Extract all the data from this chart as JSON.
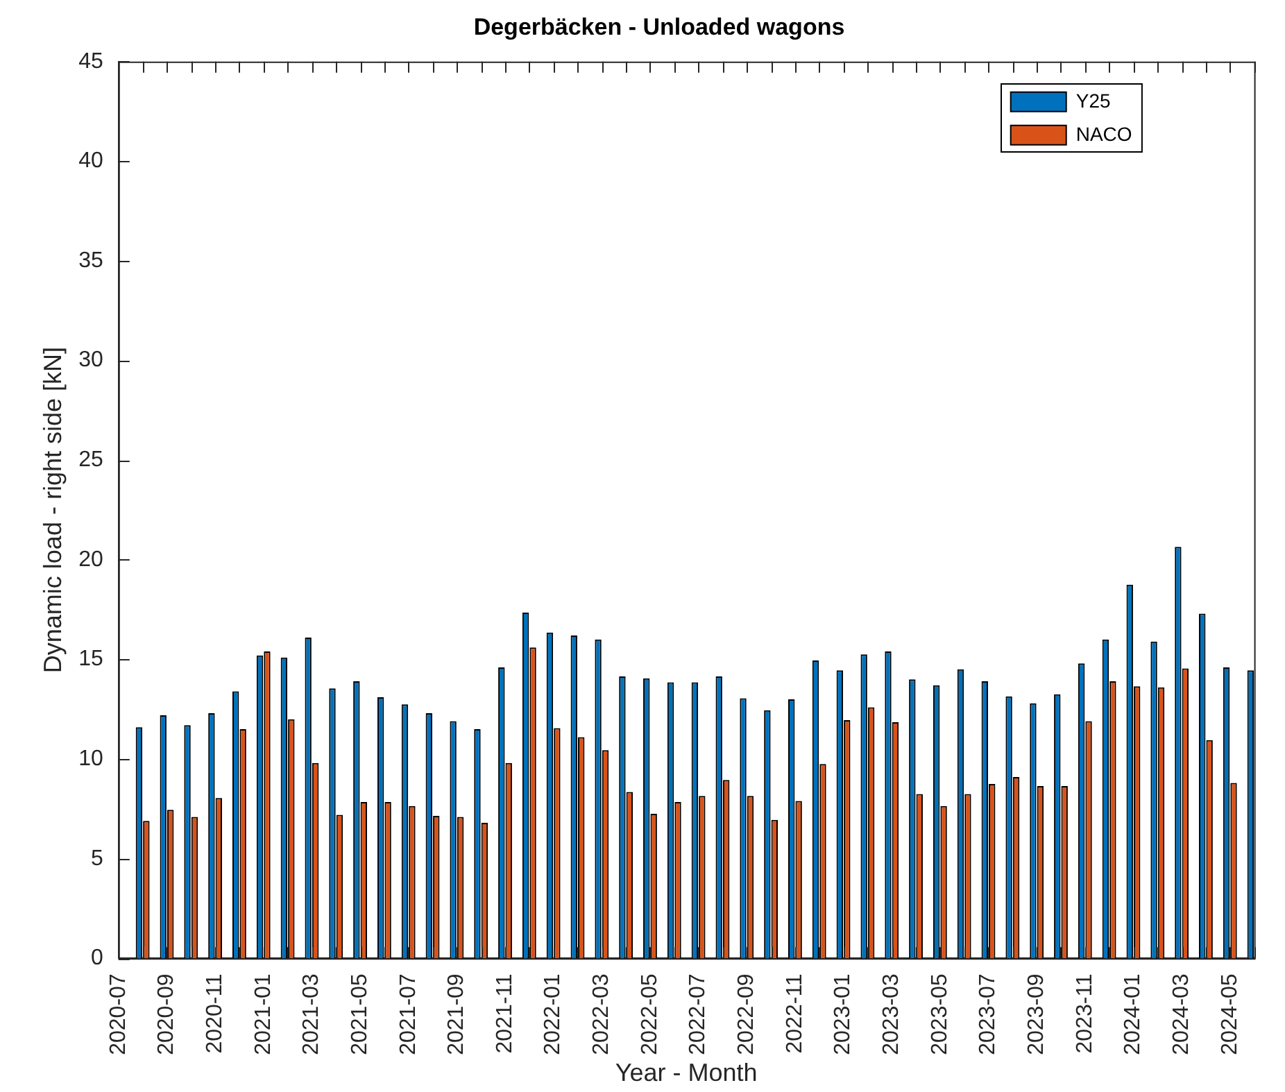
{
  "chart_data": {
    "type": "bar",
    "title": "Degerbäcken - Unloaded wagons",
    "xlabel": "Year - Month",
    "ylabel": "Dynamic load - right side [kN]",
    "categories": [
      "2020-07",
      null,
      "2020-09",
      null,
      "2020-11",
      null,
      "2021-01",
      null,
      "2021-03",
      null,
      "2021-05",
      null,
      "2021-07",
      null,
      "2021-09",
      null,
      "2021-11",
      null,
      "2022-01",
      null,
      "2022-03",
      null,
      "2022-05",
      null,
      "2022-07",
      null,
      "2022-09",
      null,
      "2022-11",
      null,
      "2023-01",
      null,
      "2023-03",
      null,
      "2023-05",
      null,
      "2023-07",
      null,
      "2023-09",
      null,
      "2023-11",
      null,
      "2024-01",
      null,
      "2024-03",
      null,
      "2024-05",
      null
    ],
    "series": [
      {
        "name": "Y25",
        "color": "#0072bd",
        "values": [
          null,
          11.6,
          12.2,
          11.7,
          12.3,
          13.4,
          15.2,
          15.1,
          16.1,
          13.55,
          13.9,
          13.1,
          12.75,
          12.3,
          11.9,
          11.5,
          14.6,
          17.35,
          16.35,
          16.2,
          16.0,
          14.15,
          14.05,
          13.85,
          13.85,
          14.15,
          13.05,
          12.45,
          13.0,
          14.95,
          14.45,
          15.25,
          15.4,
          14.0,
          13.7,
          14.5,
          13.9,
          13.15,
          12.8,
          13.25,
          14.8,
          16.0,
          18.75,
          15.9,
          20.65,
          17.3,
          14.6,
          14.45
        ]
      },
      {
        "name": "NACO",
        "color": "#d95319",
        "values": [
          null,
          6.9,
          7.45,
          7.1,
          8.05,
          11.5,
          15.4,
          12.0,
          9.8,
          7.2,
          7.85,
          7.85,
          7.65,
          7.15,
          7.1,
          6.8,
          9.8,
          15.6,
          11.55,
          11.1,
          10.45,
          8.35,
          7.25,
          7.85,
          8.15,
          8.95,
          8.15,
          6.95,
          7.9,
          9.75,
          11.95,
          12.6,
          11.85,
          8.25,
          7.65,
          8.25,
          8.75,
          9.1,
          8.65,
          8.65,
          11.9,
          13.9,
          13.65,
          13.6,
          14.55,
          10.95,
          8.8,
          null
        ]
      }
    ],
    "ylim": [
      0,
      45
    ],
    "yticks": [
      0,
      5,
      10,
      15,
      20,
      25,
      30,
      35,
      40,
      45
    ],
    "legend": "top right"
  }
}
